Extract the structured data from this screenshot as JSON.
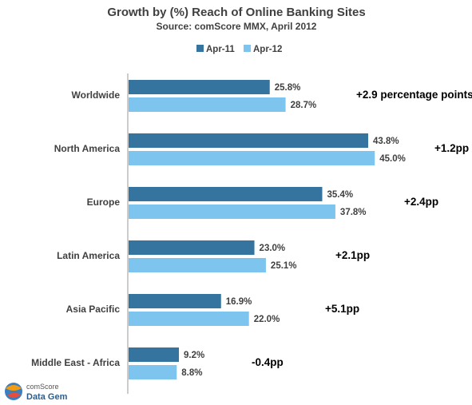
{
  "chart_data": {
    "type": "bar",
    "orientation": "horizontal",
    "title": "Growth by (%) Reach of Online Banking Sites",
    "subtitle": "Source: comScore MMX, April 2012",
    "categories": [
      "Worldwide",
      "North America",
      "Europe",
      "Latin America",
      "Asia Pacific",
      "Middle East - Africa"
    ],
    "series": [
      {
        "name": "Apr-11",
        "color": "#35749e",
        "values": [
          25.8,
          43.8,
          35.4,
          23.0,
          16.9,
          9.2
        ]
      },
      {
        "name": "Apr-12",
        "color": "#7dc4ee",
        "values": [
          28.7,
          45.0,
          37.8,
          25.1,
          22.0,
          8.8
        ]
      }
    ],
    "annotations": [
      "+2.9 percentage points",
      "+1.2pp",
      "+2.4pp",
      "+2.1pp",
      "+5.1pp",
      "-0.4pp"
    ],
    "legend_position": "top",
    "grid": false,
    "xlim": [
      0,
      50
    ]
  },
  "branding": {
    "logo_line1": "comScore",
    "logo_line2": "Data Gem"
  }
}
